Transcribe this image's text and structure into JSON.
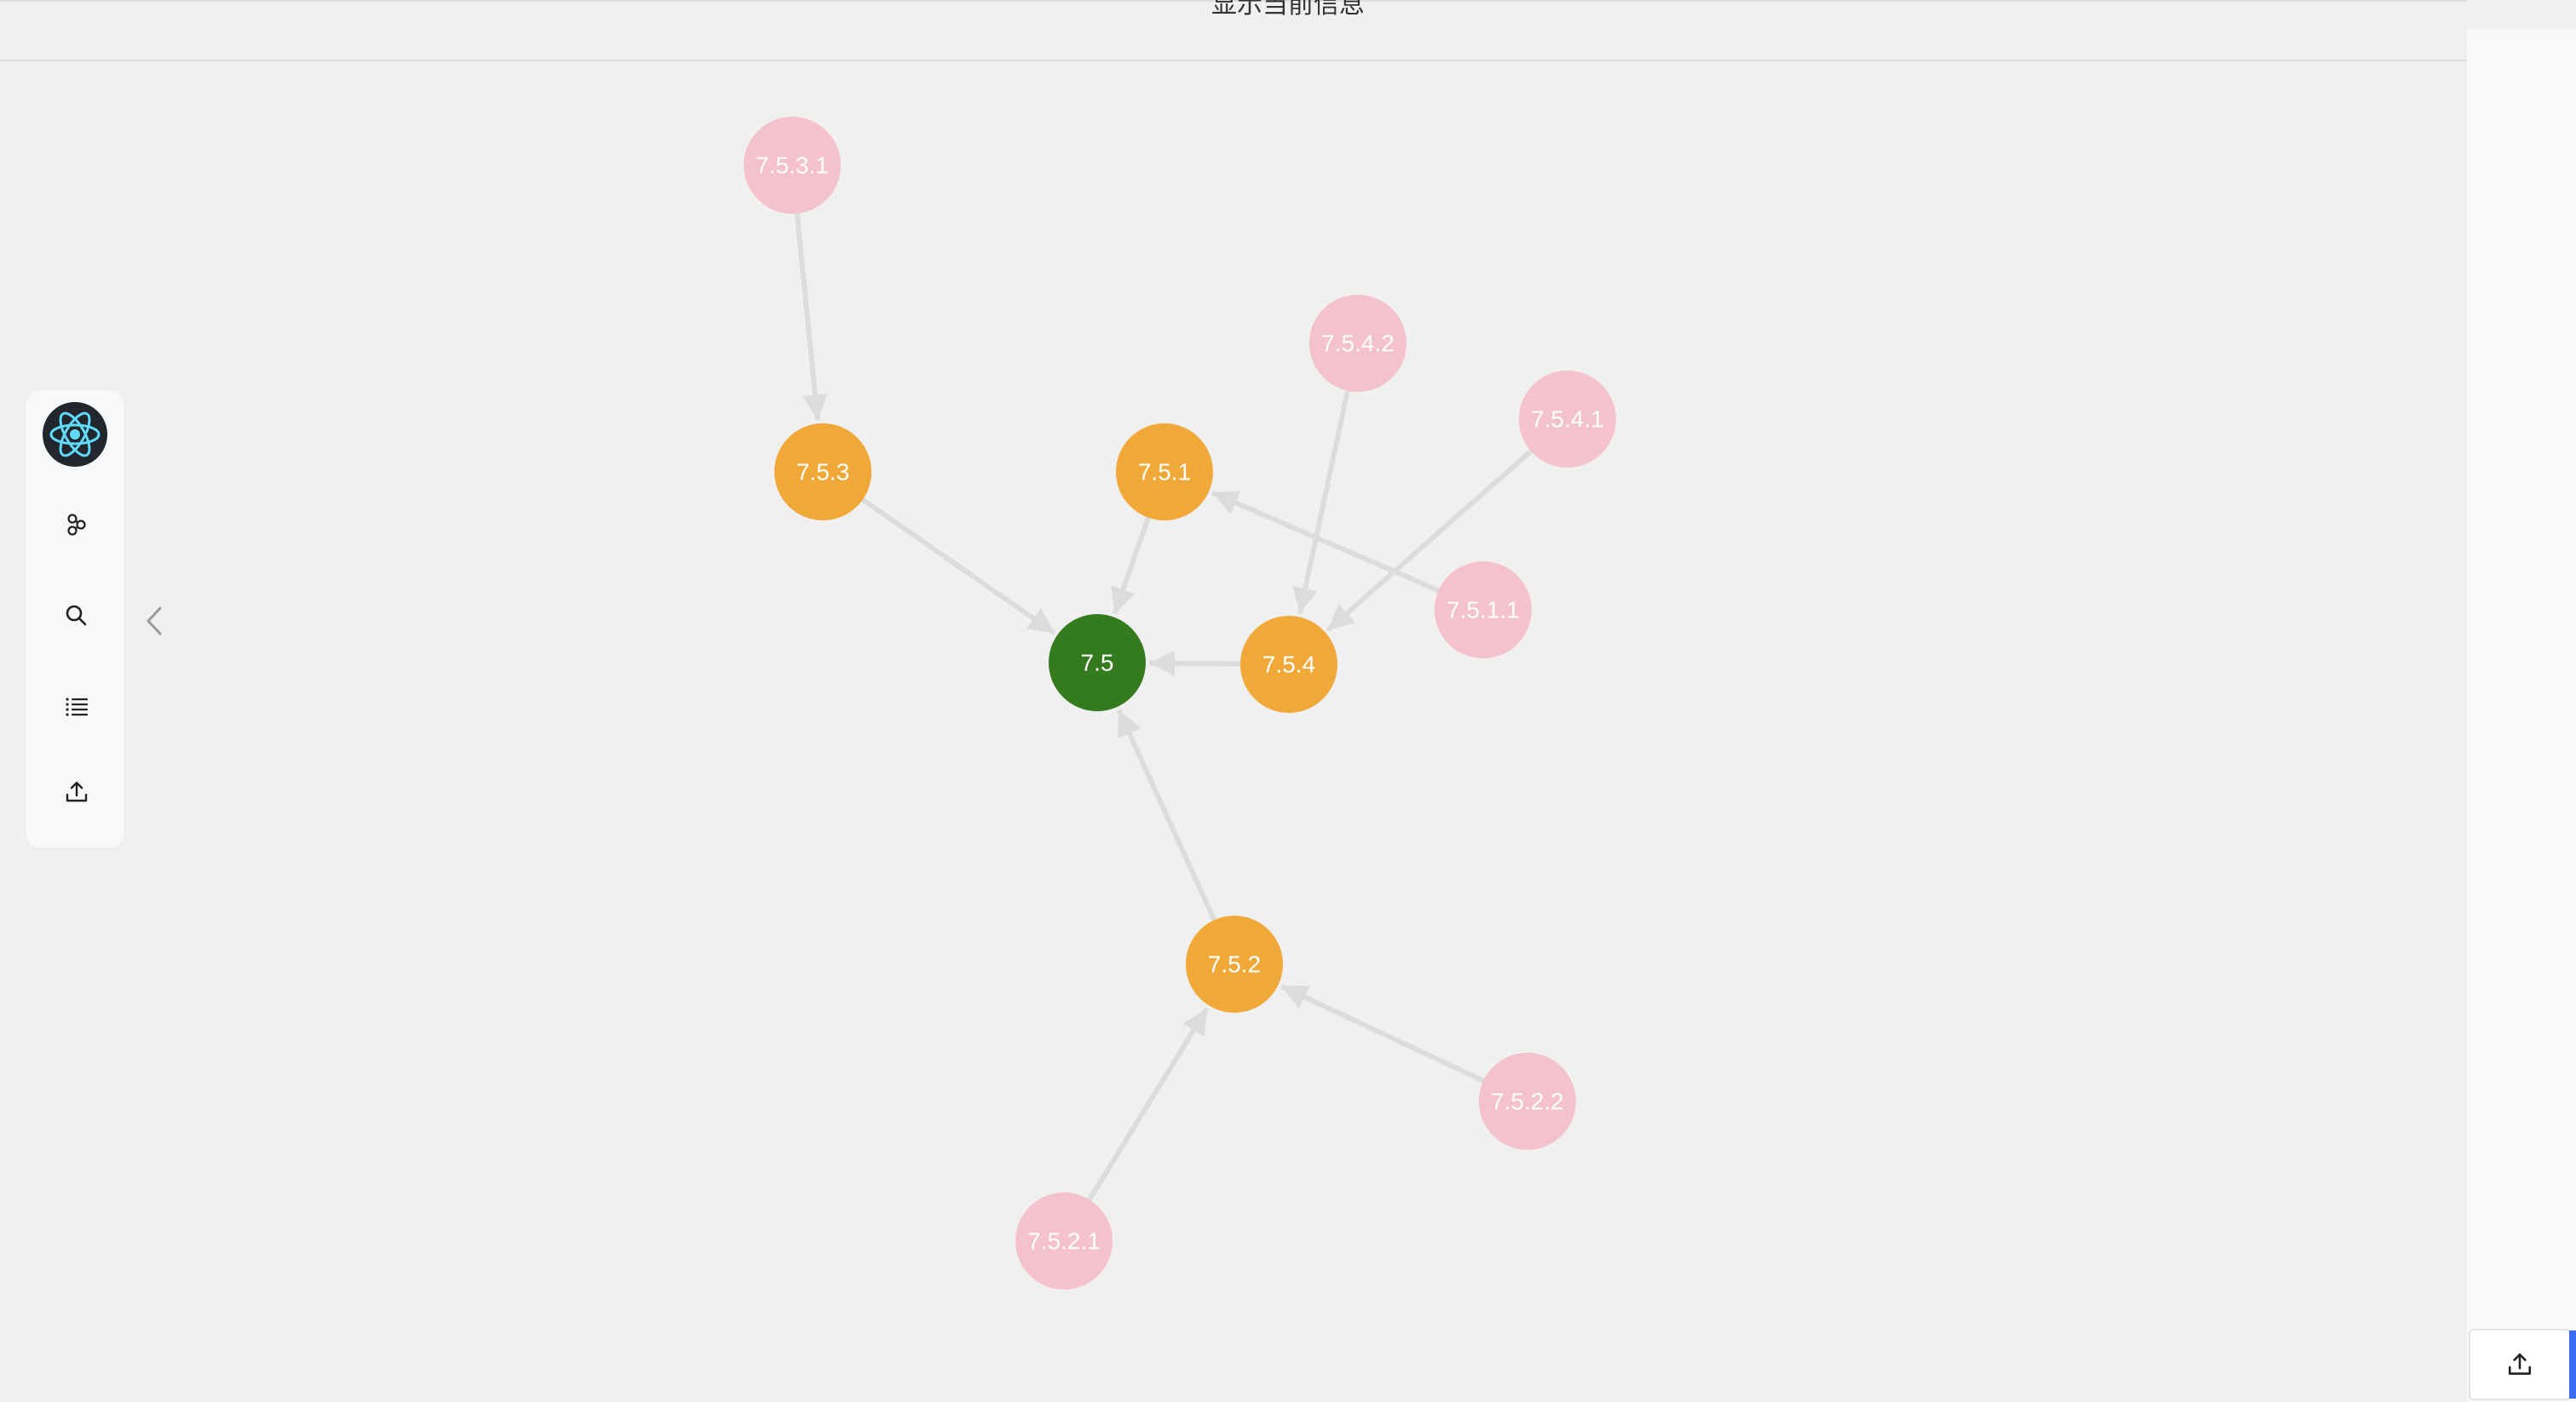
{
  "header": {
    "title": "显示当前信息"
  },
  "toolbar": {
    "logo_icon": "atom-icon",
    "buttons": [
      {
        "name": "layout-button",
        "icon": "link-icon"
      },
      {
        "name": "search-button",
        "icon": "search-icon"
      },
      {
        "name": "list-button",
        "icon": "list-icon"
      },
      {
        "name": "export-button",
        "icon": "upload-icon"
      }
    ],
    "collapse_icon": "chevron-left-icon"
  },
  "right_panel": {
    "export_icon": "upload-icon",
    "accent_color": "#3b6ef5"
  },
  "colors": {
    "background": "#f0f0f0",
    "root": "#347a1e",
    "level1": "#f0a838",
    "level2": "#f4c2cc",
    "edge": "#dcdcdc"
  },
  "graph": {
    "nodes": [
      {
        "id": "n75",
        "label": "7.5",
        "level": 0
      },
      {
        "id": "n751",
        "label": "7.5.1",
        "level": 1
      },
      {
        "id": "n752",
        "label": "7.5.2",
        "level": 1
      },
      {
        "id": "n753",
        "label": "7.5.3",
        "level": 1
      },
      {
        "id": "n754",
        "label": "7.5.4",
        "level": 1
      },
      {
        "id": "n7511",
        "label": "7.5.1.1",
        "level": 2
      },
      {
        "id": "n7521",
        "label": "7.5.2.1",
        "level": 2
      },
      {
        "id": "n7522",
        "label": "7.5.2.2",
        "level": 2
      },
      {
        "id": "n7531",
        "label": "7.5.3.1",
        "level": 2
      },
      {
        "id": "n7541",
        "label": "7.5.4.1",
        "level": 2
      },
      {
        "id": "n7542",
        "label": "7.5.4.2",
        "level": 2
      }
    ],
    "edges": [
      {
        "from": "n753",
        "to": "n75"
      },
      {
        "from": "n751",
        "to": "n75"
      },
      {
        "from": "n754",
        "to": "n75"
      },
      {
        "from": "n752",
        "to": "n75"
      },
      {
        "from": "n7531",
        "to": "n753"
      },
      {
        "from": "n7511",
        "to": "n751"
      },
      {
        "from": "n7542",
        "to": "n754"
      },
      {
        "from": "n7541",
        "to": "n754"
      },
      {
        "from": "n7521",
        "to": "n752"
      },
      {
        "from": "n7522",
        "to": "n752"
      }
    ]
  }
}
